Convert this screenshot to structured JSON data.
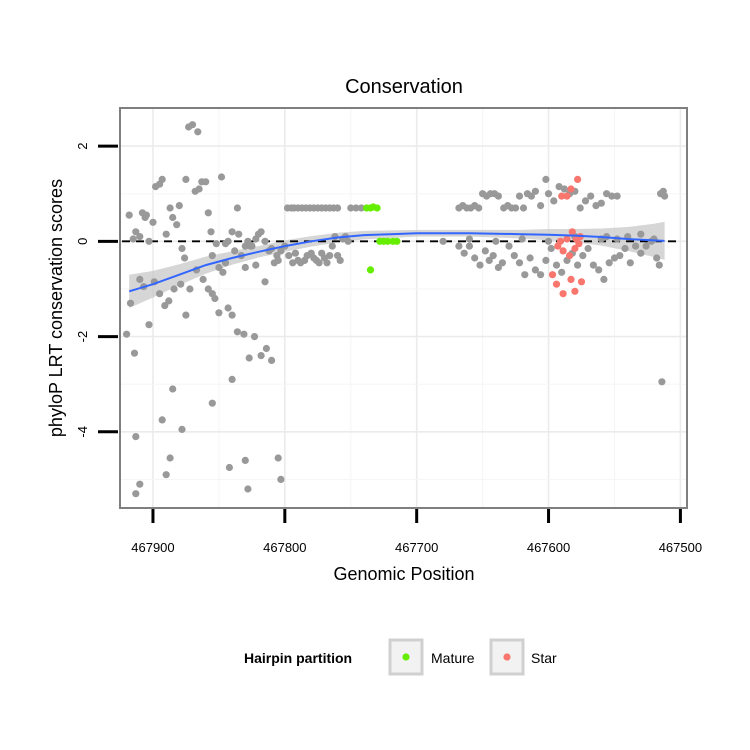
{
  "chart_data": {
    "type": "scatter",
    "title": "Conservation",
    "xlabel": "Genomic Position",
    "ylabel": "phyloP LRT conservation scores",
    "x_reversed": true,
    "xlim": [
      467925,
      467495
    ],
    "ylim": [
      -5.6,
      2.8
    ],
    "x_ticks": [
      467900,
      467800,
      467700,
      467600,
      467500
    ],
    "x_tick_labels": [
      "467900",
      "467800",
      "467700",
      "467600",
      "467500"
    ],
    "y_ticks": [
      2,
      0,
      -2,
      -4
    ],
    "y_tick_labels": [
      "2",
      "0",
      "-2",
      "-4"
    ],
    "reference_line": {
      "y": 0,
      "style": "dashed"
    },
    "legend": {
      "title": "Hairpin partition",
      "position": "bottom",
      "entries": [
        {
          "label": "Mature",
          "color": "#66ee00"
        },
        {
          "label": "Star",
          "color": "#f8766d"
        }
      ]
    },
    "colors": {
      "Other": "#999999",
      "Mature": "#66ee00",
      "Star": "#f8766d",
      "smooth": "#3366ff",
      "ribbon": "#c8c8c8"
    },
    "series": [
      {
        "name": "Other",
        "points": [
          [
            467918,
            0.55
          ],
          [
            467915,
            0.05
          ],
          [
            467913,
            0.2
          ],
          [
            467910,
            0.1
          ],
          [
            467908,
            0.6
          ],
          [
            467906,
            0.5
          ],
          [
            467905,
            0.55
          ],
          [
            467903,
            0.0
          ],
          [
            467900,
            0.4
          ],
          [
            467898,
            1.15
          ],
          [
            467895,
            1.2
          ],
          [
            467893,
            1.3
          ],
          [
            467890,
            0.15
          ],
          [
            467887,
            0.7
          ],
          [
            467885,
            0.5
          ],
          [
            467882,
            0.35
          ],
          [
            467880,
            0.75
          ],
          [
            467878,
            -0.15
          ],
          [
            467876,
            -0.35
          ],
          [
            467875,
            1.3
          ],
          [
            467873,
            2.4
          ],
          [
            467870,
            2.45
          ],
          [
            467868,
            1.05
          ],
          [
            467866,
            2.3
          ],
          [
            467865,
            1.1
          ],
          [
            467863,
            1.25
          ],
          [
            467860,
            1.25
          ],
          [
            467858,
            0.6
          ],
          [
            467856,
            0.2
          ],
          [
            467855,
            -0.3
          ],
          [
            467852,
            -0.05
          ],
          [
            467850,
            -0.55
          ],
          [
            467848,
            1.35
          ],
          [
            467845,
            -0.05
          ],
          [
            467843,
            0.0
          ],
          [
            467840,
            0.2
          ],
          [
            467838,
            -0.2
          ],
          [
            467836,
            0.7
          ],
          [
            467835,
            0.15
          ],
          [
            467833,
            -0.3
          ],
          [
            467830,
            -0.1
          ],
          [
            467828,
            0.0
          ],
          [
            467826,
            -0.1
          ],
          [
            467825,
            -0.1
          ],
          [
            467822,
            0.05
          ],
          [
            467820,
            0.15
          ],
          [
            467818,
            0.2
          ],
          [
            467815,
            0.0
          ],
          [
            467812,
            -0.2
          ],
          [
            467810,
            -0.15
          ],
          [
            467808,
            -0.45
          ],
          [
            467806,
            -0.3
          ],
          [
            467803,
            -0.2
          ],
          [
            467800,
            -0.1
          ],
          [
            467797,
            -0.3
          ],
          [
            467794,
            -0.45
          ],
          [
            467792,
            -0.25
          ],
          [
            467790,
            -0.4
          ],
          [
            467788,
            -0.45
          ],
          [
            467785,
            -0.4
          ],
          [
            467783,
            -0.3
          ],
          [
            467780,
            -0.25
          ],
          [
            467778,
            -0.35
          ],
          [
            467776,
            -0.4
          ],
          [
            467774,
            -0.45
          ],
          [
            467772,
            -0.25
          ],
          [
            467770,
            -0.35
          ],
          [
            467768,
            -0.45
          ],
          [
            467766,
            -0.3
          ],
          [
            467764,
            -0.1
          ],
          [
            467762,
            0.1
          ],
          [
            467760,
            -0.3
          ],
          [
            467758,
            -0.4
          ],
          [
            467756,
            0.05
          ],
          [
            467754,
            0.1
          ],
          [
            467752,
            0.0
          ],
          [
            467798,
            0.7
          ],
          [
            467795,
            0.7
          ],
          [
            467793,
            0.7
          ],
          [
            467790,
            0.7
          ],
          [
            467787,
            0.7
          ],
          [
            467784,
            0.7
          ],
          [
            467781,
            0.7
          ],
          [
            467778,
            0.7
          ],
          [
            467775,
            0.7
          ],
          [
            467772,
            0.7
          ],
          [
            467769,
            0.7
          ],
          [
            467766,
            0.7
          ],
          [
            467763,
            0.7
          ],
          [
            467760,
            0.7
          ],
          [
            467750,
            0.7
          ],
          [
            467746,
            0.7
          ],
          [
            467742,
            0.7
          ],
          [
            467920,
            -1.95
          ],
          [
            467917,
            -1.3
          ],
          [
            467914,
            -2.35
          ],
          [
            467910,
            -0.8
          ],
          [
            467907,
            -0.95
          ],
          [
            467903,
            -1.75
          ],
          [
            467899,
            -0.85
          ],
          [
            467895,
            -1.1
          ],
          [
            467891,
            -1.35
          ],
          [
            467888,
            -1.25
          ],
          [
            467884,
            -1.0
          ],
          [
            467879,
            -0.9
          ],
          [
            467875,
            -1.55
          ],
          [
            467872,
            -1.0
          ],
          [
            467867,
            -0.6
          ],
          [
            467862,
            -0.8
          ],
          [
            467858,
            -1.0
          ],
          [
            467855,
            -1.1
          ],
          [
            467853,
            -1.2
          ],
          [
            467850,
            -1.5
          ],
          [
            467847,
            -0.65
          ],
          [
            467843,
            -1.4
          ],
          [
            467840,
            -1.55
          ],
          [
            467836,
            -1.9
          ],
          [
            467831,
            -1.95
          ],
          [
            467827,
            -2.45
          ],
          [
            467823,
            -2.0
          ],
          [
            467818,
            -2.4
          ],
          [
            467814,
            -2.25
          ],
          [
            467810,
            -2.5
          ],
          [
            467845,
            -0.45
          ],
          [
            467830,
            -0.55
          ],
          [
            467822,
            -0.5
          ],
          [
            467815,
            -0.85
          ],
          [
            467805,
            -0.4
          ],
          [
            467913,
            -4.1
          ],
          [
            467910,
            -5.1
          ],
          [
            467913,
            -5.3
          ],
          [
            467893,
            -3.75
          ],
          [
            467890,
            -4.9
          ],
          [
            467885,
            -3.1
          ],
          [
            467878,
            -3.95
          ],
          [
            467887,
            -4.55
          ],
          [
            467855,
            -3.4
          ],
          [
            467840,
            -2.9
          ],
          [
            467842,
            -4.75
          ],
          [
            467830,
            -4.6
          ],
          [
            467828,
            -5.2
          ],
          [
            467805,
            -4.55
          ],
          [
            467803,
            -5.0
          ],
          [
            467668,
            0.7
          ],
          [
            467665,
            0.75
          ],
          [
            467662,
            0.7
          ],
          [
            467659,
            0.7
          ],
          [
            467656,
            0.75
          ],
          [
            467653,
            0.7
          ],
          [
            467650,
            1.0
          ],
          [
            467647,
            0.95
          ],
          [
            467644,
            1.0
          ],
          [
            467641,
            1.0
          ],
          [
            467638,
            0.95
          ],
          [
            467634,
            0.7
          ],
          [
            467631,
            0.75
          ],
          [
            467628,
            0.7
          ],
          [
            467625,
            0.7
          ],
          [
            467622,
            0.95
          ],
          [
            467619,
            0.7
          ],
          [
            467616,
            1.0
          ],
          [
            467613,
            0.95
          ],
          [
            467610,
            1.05
          ],
          [
            467606,
            0.75
          ],
          [
            467602,
            1.3
          ],
          [
            467600,
            1.0
          ],
          [
            467596,
            0.85
          ],
          [
            467592,
            1.15
          ],
          [
            467588,
            1.1
          ],
          [
            467584,
            1.0
          ],
          [
            467580,
            1.05
          ],
          [
            467576,
            0.7
          ],
          [
            467572,
            0.85
          ],
          [
            467568,
            0.95
          ],
          [
            467564,
            0.75
          ],
          [
            467560,
            0.8
          ],
          [
            467556,
            1.0
          ],
          [
            467552,
            0.95
          ],
          [
            467548,
            0.95
          ],
          [
            467515,
            1.0
          ],
          [
            467513,
            1.05
          ],
          [
            467512,
            0.95
          ],
          [
            467668,
            -0.1
          ],
          [
            467664,
            -0.25
          ],
          [
            467660,
            -0.1
          ],
          [
            467656,
            -0.35
          ],
          [
            467652,
            -0.5
          ],
          [
            467648,
            -0.2
          ],
          [
            467645,
            -0.4
          ],
          [
            467642,
            -0.3
          ],
          [
            467638,
            -0.55
          ],
          [
            467635,
            -0.45
          ],
          [
            467630,
            -0.1
          ],
          [
            467626,
            -0.3
          ],
          [
            467622,
            -0.45
          ],
          [
            467618,
            -0.7
          ],
          [
            467614,
            -0.35
          ],
          [
            467610,
            -0.6
          ],
          [
            467606,
            -0.7
          ],
          [
            467602,
            -0.4
          ],
          [
            467598,
            -0.15
          ],
          [
            467594,
            -0.5
          ],
          [
            467590,
            -0.65
          ],
          [
            467586,
            -0.4
          ],
          [
            467582,
            -0.25
          ],
          [
            467578,
            -0.5
          ],
          [
            467574,
            -0.3
          ],
          [
            467570,
            -0.15
          ],
          [
            467566,
            -0.5
          ],
          [
            467562,
            -0.6
          ],
          [
            467558,
            -0.8
          ],
          [
            467554,
            -0.45
          ],
          [
            467550,
            -0.35
          ],
          [
            467546,
            -0.3
          ],
          [
            467542,
            -0.15
          ],
          [
            467538,
            -0.45
          ],
          [
            467534,
            -0.1
          ],
          [
            467530,
            -0.25
          ],
          [
            467526,
            -0.1
          ],
          [
            467522,
            0.0
          ],
          [
            467518,
            -0.35
          ],
          [
            467516,
            -0.5
          ],
          [
            467680,
            0.0
          ],
          [
            467660,
            0.05
          ],
          [
            467640,
            0.0
          ],
          [
            467620,
            0.05
          ],
          [
            467600,
            0.0
          ],
          [
            467580,
            0.1
          ],
          [
            467560,
            0.05
          ],
          [
            467540,
            0.1
          ],
          [
            467520,
            0.05
          ],
          [
            467530,
            0.15
          ],
          [
            467548,
            0.05
          ],
          [
            467556,
            0.1
          ],
          [
            467514,
            -2.95
          ]
        ]
      },
      {
        "name": "Mature",
        "points": [
          [
            467738,
            0.7
          ],
          [
            467735,
            0.7
          ],
          [
            467733,
            0.72
          ],
          [
            467730,
            0.7
          ],
          [
            467728,
            0.0
          ],
          [
            467725,
            0.0
          ],
          [
            467722,
            0.0
          ],
          [
            467718,
            0.0
          ],
          [
            467715,
            0.0
          ],
          [
            467735,
            -0.6
          ]
        ]
      },
      {
        "name": "Star",
        "points": [
          [
            467590,
            0.95
          ],
          [
            467586,
            0.95
          ],
          [
            467583,
            1.1
          ],
          [
            467578,
            1.3
          ],
          [
            467591,
            0.0
          ],
          [
            467586,
            0.05
          ],
          [
            467582,
            0.2
          ],
          [
            467579,
            0.05
          ],
          [
            467576,
            0.1
          ],
          [
            467593,
            -0.1
          ],
          [
            467589,
            -0.2
          ],
          [
            467584,
            -0.3
          ],
          [
            467580,
            -0.15
          ],
          [
            467577,
            -0.05
          ],
          [
            467597,
            -0.7
          ],
          [
            467594,
            -0.9
          ],
          [
            467589,
            -1.1
          ],
          [
            467583,
            -0.8
          ],
          [
            467580,
            -1.05
          ],
          [
            467575,
            -0.85
          ]
        ]
      }
    ],
    "smooth": {
      "method": "loess",
      "points": [
        [
          467918,
          -1.05,
          0.35
        ],
        [
          467900,
          -0.9,
          0.28
        ],
        [
          467880,
          -0.7,
          0.22
        ],
        [
          467860,
          -0.5,
          0.18
        ],
        [
          467840,
          -0.35,
          0.14
        ],
        [
          467820,
          -0.22,
          0.12
        ],
        [
          467800,
          -0.1,
          0.12
        ],
        [
          467780,
          0.0,
          0.11
        ],
        [
          467760,
          0.08,
          0.1
        ],
        [
          467740,
          0.13,
          0.09
        ],
        [
          467720,
          0.15,
          0.08
        ],
        [
          467700,
          0.17,
          0.07
        ],
        [
          467680,
          0.17,
          0.07
        ],
        [
          467660,
          0.17,
          0.07
        ],
        [
          467640,
          0.16,
          0.08
        ],
        [
          467620,
          0.15,
          0.09
        ],
        [
          467600,
          0.14,
          0.12
        ],
        [
          467580,
          0.12,
          0.14
        ],
        [
          467560,
          0.09,
          0.18
        ],
        [
          467540,
          0.05,
          0.25
        ],
        [
          467520,
          0.02,
          0.35
        ],
        [
          467512,
          0.01,
          0.4
        ]
      ]
    }
  }
}
